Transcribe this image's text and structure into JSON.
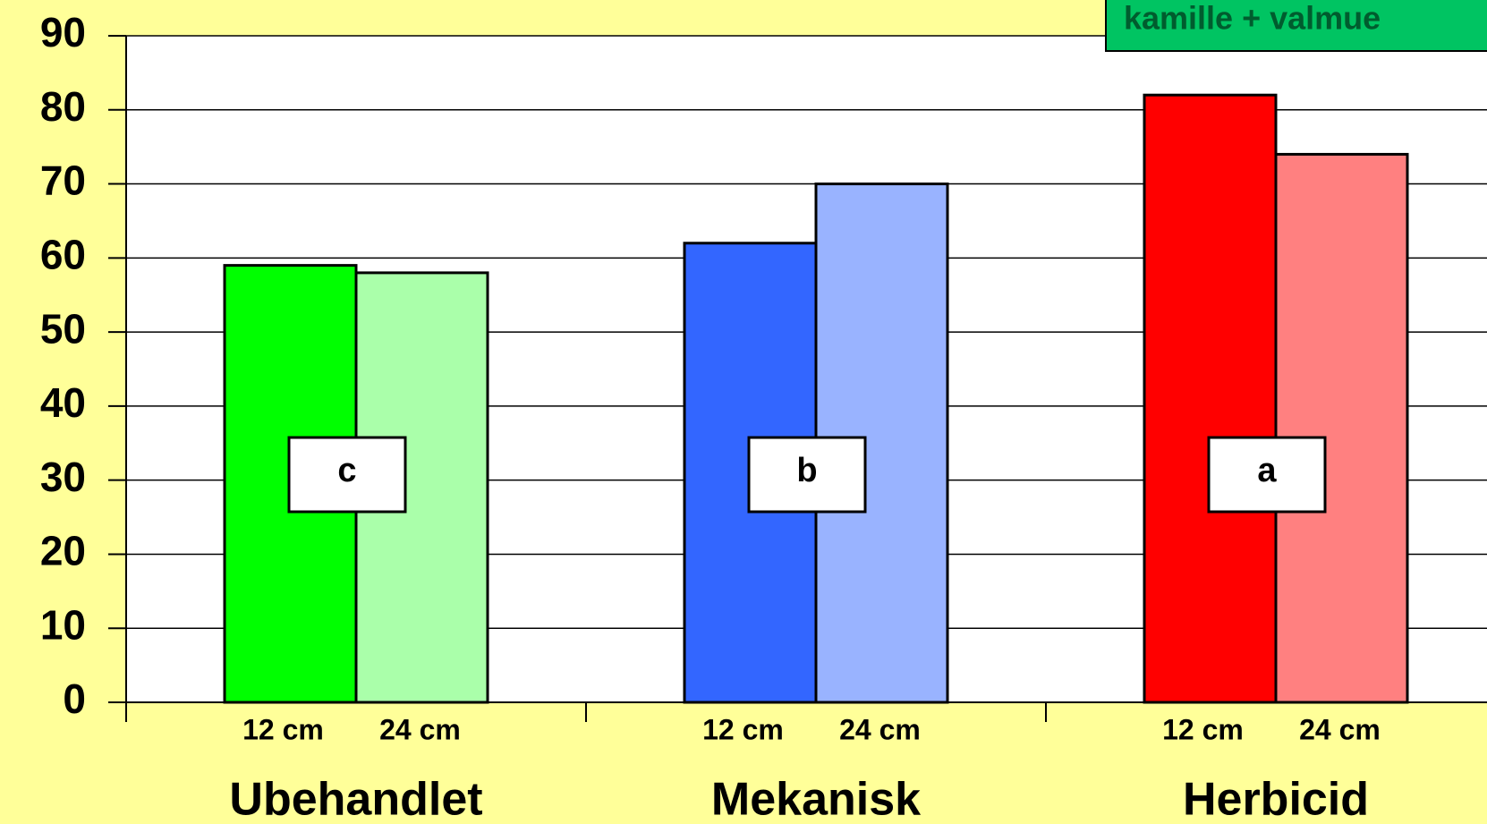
{
  "chart_data": {
    "type": "grouped_bar",
    "title": "kamille + valmue",
    "categories": [
      "Ubehandlet",
      "Mekanisk",
      "Herbicid"
    ],
    "series": [
      {
        "name": "12 cm",
        "colors": [
          "#00ff00",
          "#3366ff",
          "#ff0000"
        ],
        "values": [
          59,
          62,
          82
        ]
      },
      {
        "name": "24 cm",
        "colors": [
          "#aaffaa",
          "#99b3ff",
          "#ff8080"
        ],
        "values": [
          58,
          70,
          74
        ]
      }
    ],
    "annotations": [
      "c",
      "b",
      "a"
    ],
    "ylim": [
      0,
      90
    ],
    "yticks": [
      0,
      10,
      20,
      30,
      40,
      50,
      60,
      70,
      80,
      90
    ],
    "grid": true
  }
}
